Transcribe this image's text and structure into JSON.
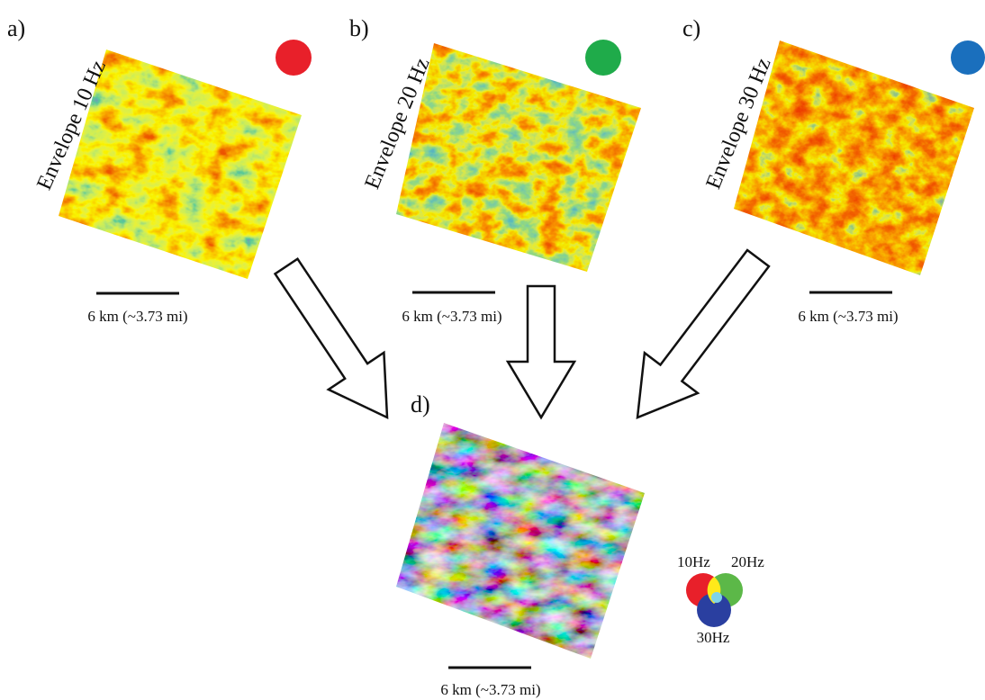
{
  "panels": [
    {
      "label": "a)",
      "title": "Envelope 10 Hz",
      "scale": "6 km (~3.73 mi)"
    },
    {
      "label": "b)",
      "title": "Envelope 20 Hz",
      "scale": "6 km (~3.73 mi)"
    },
    {
      "label": "c)",
      "title": "Envelope 30 Hz",
      "scale": "6 km (~3.73 mi)"
    }
  ],
  "composite": {
    "label": "d)",
    "scale": "6 km (~3.73 mi)"
  },
  "legend": {
    "items": [
      "10Hz",
      "20Hz",
      "30Hz"
    ]
  }
}
